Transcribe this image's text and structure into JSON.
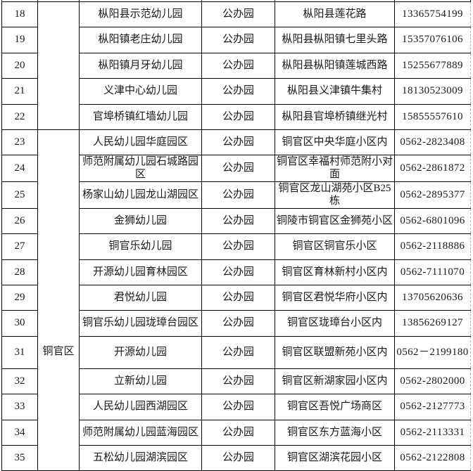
{
  "page": {
    "background": "#ffffff",
    "border_color": "#000000",
    "dashed_break_color": "#7a7a7a",
    "dashed_edge_color": "#b3b3b3",
    "text_color": "#1a1a1a"
  },
  "table": {
    "type": "table",
    "visible_row_range": [
      "18",
      "35"
    ],
    "district_groups": [
      {
        "label": "",
        "row_start": 18,
        "row_end": 22
      },
      {
        "label": "铜官区",
        "row_start": 23,
        "row_end": 35
      }
    ],
    "tall_rows": [
      31
    ],
    "rows": [
      {
        "no": "18",
        "name": "枞阳县示范幼儿园",
        "type": "公办园",
        "address": "枞阳县莲花路",
        "phone": "13365754199"
      },
      {
        "no": "19",
        "name": "枞阳镇老庄幼儿园",
        "type": "公办园",
        "address": "枞阳县枞阳镇七里头路",
        "phone": "15357076106"
      },
      {
        "no": "20",
        "name": "枞阳镇月牙幼儿园",
        "type": "公办园",
        "address": "枞阳县枞阳镇莲城西路",
        "phone": "15255677889"
      },
      {
        "no": "21",
        "name": "义津中心幼儿园",
        "type": "公办园",
        "address": "枞阳县义津镇牛集村",
        "phone": "18130523009"
      },
      {
        "no": "22",
        "name": "官埠桥镇红墙幼儿园",
        "type": "公办园",
        "address": "枞阳县官埠桥镇继光村",
        "phone": "15855557610"
      },
      {
        "no": "23",
        "name": "人民幼儿园华庭园区",
        "type": "公办园",
        "address": "铜官区中央华庭小区内",
        "phone": "0562-2823408"
      },
      {
        "no": "24",
        "name": "师范附属幼儿园石城路园区",
        "type": "公办园",
        "address": "铜官区幸福村师范附小对面",
        "phone": "0562-2861872"
      },
      {
        "no": "25",
        "name": "杨家山幼儿园龙山湖园区",
        "type": "公办园",
        "address": "铜官区龙山湖苑小区B25栋",
        "phone": "0562-2895377"
      },
      {
        "no": "26",
        "name": "金狮幼儿园",
        "type": "公办园",
        "address": "铜陵市铜官区金狮苑小区",
        "phone": "0562-6801096"
      },
      {
        "no": "27",
        "name": "铜官乐幼儿园",
        "type": "公办园",
        "address": "铜官区铜官乐小区",
        "phone": "0562-2118886"
      },
      {
        "no": "28",
        "name": "开源幼儿园育林园区",
        "type": "公办园",
        "address": "铜官区育林新村小区内",
        "phone": "0562-7111070"
      },
      {
        "no": "29",
        "name": "君悦幼儿园",
        "type": "公办园",
        "address": "铜官区君悦华府小区内",
        "phone": "13705620636"
      },
      {
        "no": "30",
        "name": "铜官乐幼儿园珑璋台园区",
        "type": "公办园",
        "address": "铜官区珑璋台小区内",
        "phone": "13856269127"
      },
      {
        "no": "31",
        "name": "开源幼儿园",
        "type": "公办园",
        "address": "铜官区联盟新苑小区内",
        "phone": "0562－2199180"
      },
      {
        "no": "32",
        "name": "立新幼儿园",
        "type": "公办园",
        "address": "铜官区新湖家园小区内",
        "phone": "0562-2802000"
      },
      {
        "no": "33",
        "name": "人民幼儿园西湖园区",
        "type": "公办园",
        "address": "铜官区吾悦广场商区",
        "phone": "0562-2127773"
      },
      {
        "no": "34",
        "name": "师范附属幼儿园蓝海园区",
        "type": "公办园",
        "address": "铜官区东方蓝海小区",
        "phone": "0562-2113331"
      },
      {
        "no": "35",
        "name": "五松幼儿园湖滨园区",
        "type": "公办园",
        "address": "铜官区湖滨花园小区",
        "phone": "0562-2122808"
      }
    ]
  }
}
